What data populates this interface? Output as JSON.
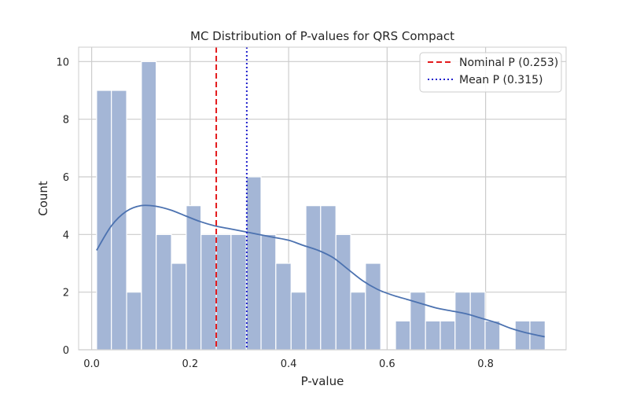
{
  "chart_data": {
    "type": "bar",
    "title": "MC Distribution of P-values for QRS Compact",
    "xlabel": "P-value",
    "ylabel": "Count",
    "xlim": [
      -0.0265,
      0.9635
    ],
    "ylim": [
      0,
      10.5
    ],
    "xticks": [
      0.0,
      0.2,
      0.4,
      0.6,
      0.8
    ],
    "xtick_labels": [
      "0.0",
      "0.2",
      "0.4",
      "0.6",
      "0.8"
    ],
    "yticks": [
      0,
      2,
      4,
      6,
      8,
      10
    ],
    "ytick_labels": [
      "0",
      "2",
      "4",
      "6",
      "8",
      "10"
    ],
    "grid": true,
    "bar_color": "#a4b6d6",
    "bin_edges": [
      0.01,
      0.04,
      0.071,
      0.101,
      0.131,
      0.162,
      0.192,
      0.222,
      0.253,
      0.283,
      0.314,
      0.344,
      0.374,
      0.405,
      0.435,
      0.465,
      0.496,
      0.526,
      0.556,
      0.587,
      0.617,
      0.647,
      0.678,
      0.708,
      0.738,
      0.769,
      0.799,
      0.829,
      0.86,
      0.89,
      0.921
    ],
    "counts": [
      9,
      9,
      2,
      10,
      4,
      3,
      5,
      4,
      4,
      4,
      6,
      4,
      3,
      2,
      5,
      5,
      4,
      2,
      3,
      0,
      1,
      2,
      1,
      1,
      2,
      2,
      1,
      0,
      1,
      1
    ],
    "kde": {
      "name": "KDE",
      "color": "#4c72b0",
      "x": [
        0.01,
        0.04,
        0.07,
        0.1,
        0.13,
        0.16,
        0.19,
        0.22,
        0.25,
        0.28,
        0.31,
        0.34,
        0.37,
        0.4,
        0.43,
        0.46,
        0.49,
        0.52,
        0.55,
        0.58,
        0.61,
        0.64,
        0.67,
        0.7,
        0.73,
        0.76,
        0.79,
        0.82,
        0.85,
        0.88,
        0.92
      ],
      "y": [
        3.45,
        4.3,
        4.8,
        5.0,
        4.98,
        4.85,
        4.65,
        4.45,
        4.3,
        4.2,
        4.1,
        4.0,
        3.9,
        3.8,
        3.62,
        3.45,
        3.2,
        2.8,
        2.4,
        2.1,
        1.9,
        1.75,
        1.6,
        1.45,
        1.35,
        1.25,
        1.1,
        0.95,
        0.75,
        0.6,
        0.45
      ]
    },
    "reference_lines": [
      {
        "name": "Nominal P (0.253)",
        "value": 0.253,
        "color": "#e31a1c",
        "style": "dashed"
      },
      {
        "name": "Mean P (0.315)",
        "value": 0.315,
        "color": "#1f1fcc",
        "style": "dotted"
      }
    ],
    "legend_position": "top-right"
  }
}
